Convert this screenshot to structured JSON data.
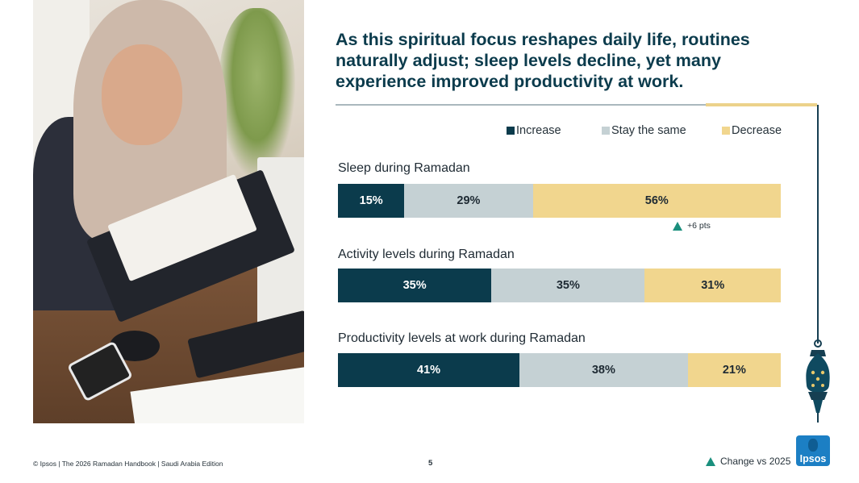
{
  "title": "As this spiritual focus reshapes daily life, routines naturally adjust; sleep levels decline, yet many experience improved productivity at work.",
  "legend": {
    "increase": "Increase",
    "same": "Stay the same",
    "decrease": "Decrease"
  },
  "colors": {
    "increase": "#0b3b4c",
    "same": "#c5d1d4",
    "decrease": "#f1d68e",
    "change_triangle": "#1a8f7d",
    "title": "#0b3b4c"
  },
  "chart_data": {
    "type": "bar",
    "orientation": "horizontal",
    "stacked": true,
    "categories": [
      "Sleep during Ramadan",
      "Activity levels during Ramadan",
      "Productivity levels at work during Ramadan"
    ],
    "series": [
      {
        "name": "Increase",
        "values": [
          15,
          35,
          41
        ]
      },
      {
        "name": "Stay the same",
        "values": [
          29,
          35,
          38
        ]
      },
      {
        "name": "Decrease",
        "values": [
          56,
          31,
          21
        ]
      }
    ],
    "labels": [
      [
        "15%",
        "29%",
        "56%"
      ],
      [
        "35%",
        "35%",
        "31%"
      ],
      [
        "41%",
        "38%",
        "21%"
      ]
    ],
    "annotations": [
      {
        "category": "Sleep during Ramadan",
        "series": "Decrease",
        "text": "+6 pts",
        "marker": "triangle-up"
      }
    ],
    "legend_position": "top-right"
  },
  "change_legend": "Change vs 2025",
  "footer": {
    "text": "© Ipsos | The 2026 Ramadan Handbook | Saudi Arabia Edition",
    "page": "5"
  },
  "logo_text": "Ipsos",
  "icons": {
    "photo": "woman-reading-folder-at-desk-photo",
    "lantern": "ramadan-lantern-icon",
    "logo": "ipsos-logo"
  }
}
